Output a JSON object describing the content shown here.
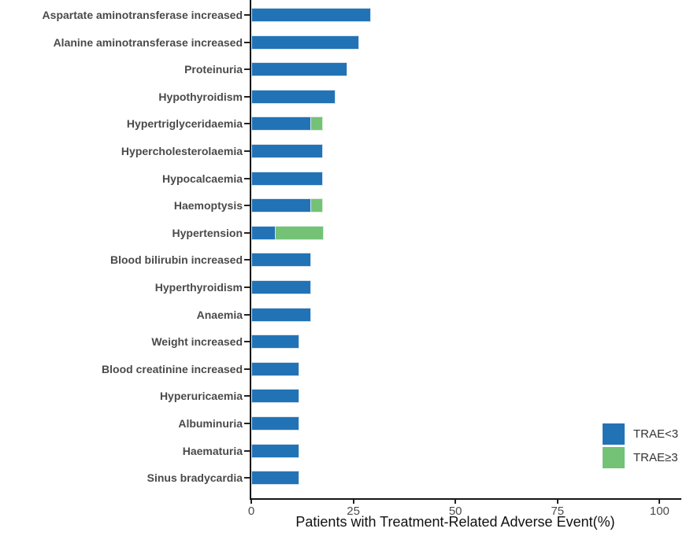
{
  "chart_data": {
    "type": "bar",
    "orientation": "horizontal",
    "stacked": true,
    "title": "",
    "xlabel": "Patients with Treatment-Related Adverse Event(%)",
    "ylabel": "",
    "xlim": [
      0,
      105
    ],
    "x_ticks": [
      0,
      25,
      50,
      75,
      100
    ],
    "grid": false,
    "legend_position": "bottom-right",
    "categories": [
      "Aspartate aminotransferase increased",
      "Alanine aminotransferase increased",
      "Proteinuria",
      "Hypothyroidism",
      "Hypertriglyceridaemia",
      "Hypercholesterolaemia",
      "Hypocalcaemia",
      "Haemoptysis",
      "Hypertension",
      "Blood bilirubin increased",
      "Hyperthyroidism",
      "Anaemia",
      "Weight increased",
      "Blood creatinine increased",
      "Hyperuricaemia",
      "Albuminuria",
      "Haematuria",
      "Sinus bradycardia"
    ],
    "series": [
      {
        "name": "TRAE<3",
        "color": "#2273b6",
        "values": [
          29.4,
          26.5,
          23.5,
          20.6,
          14.7,
          17.6,
          17.6,
          14.7,
          5.9,
          14.7,
          14.7,
          14.7,
          11.8,
          11.8,
          11.8,
          11.8,
          11.8,
          11.8
        ]
      },
      {
        "name": "TRAE≥3",
        "color": "#74c276",
        "values": [
          0,
          0,
          0,
          0,
          2.9,
          0,
          0,
          2.9,
          11.8,
          0,
          0,
          0,
          0,
          0,
          0,
          0,
          0,
          0
        ]
      }
    ],
    "legend": [
      {
        "label": "TRAE<3",
        "color": "#2273b6"
      },
      {
        "label": "TRAE≥3",
        "color": "#74c276"
      }
    ]
  },
  "colors": {
    "axis": "#161616",
    "tick_label": "#4d4d4d",
    "category_label": "#4a4a4a",
    "axis_title": "#111111",
    "background": "#ffffff"
  }
}
